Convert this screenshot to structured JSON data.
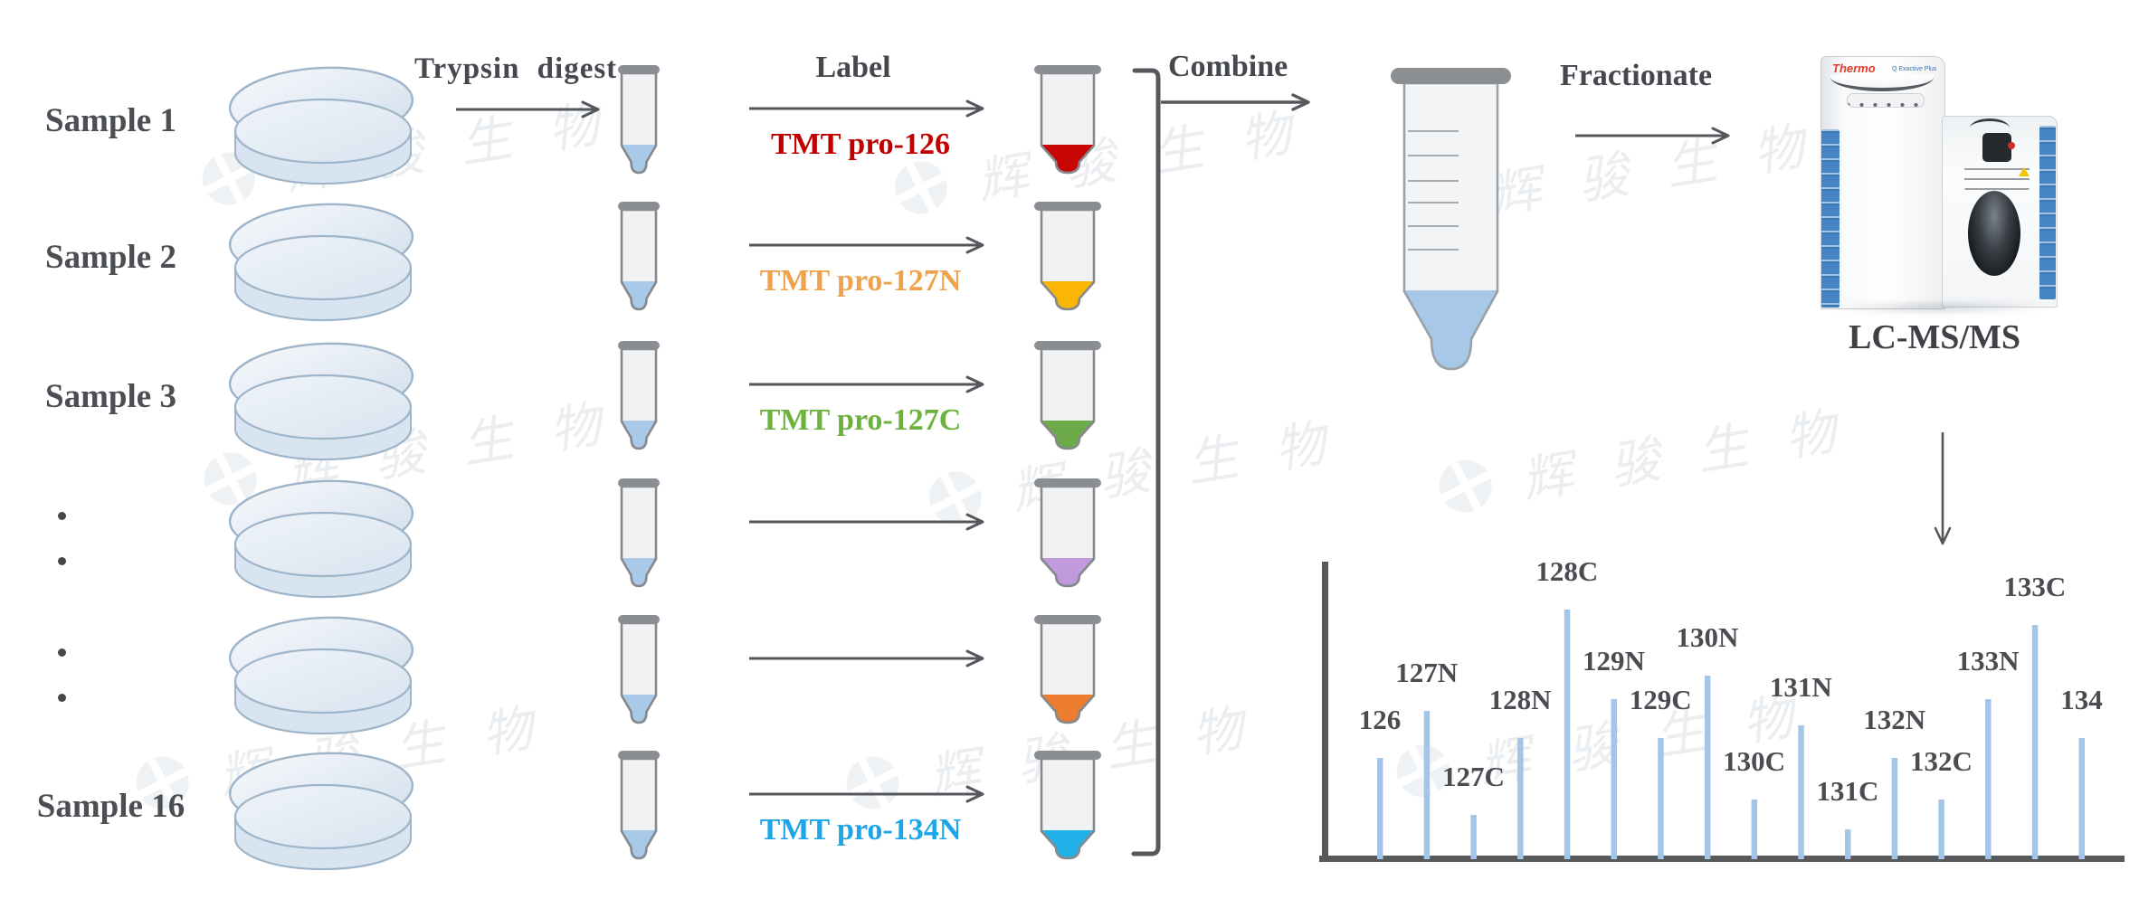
{
  "workflow": {
    "steps": {
      "digest": "Trypsin digest",
      "label": "Label",
      "combine": "Combine",
      "fractionate": "Fractionate"
    },
    "rows": [
      {
        "sample": "Sample 1",
        "dots": false,
        "tmt": "TMT pro-126",
        "tmt_color": "#c00000",
        "liquid": "#c90505"
      },
      {
        "sample": "Sample 2",
        "dots": false,
        "tmt": "TMT pro-127N",
        "tmt_color": "#f0a24b",
        "liquid": "#fbb605"
      },
      {
        "sample": "Sample 3",
        "dots": false,
        "tmt": "TMT pro-127C",
        "tmt_color": "#6cb33d",
        "liquid": "#6daa49"
      },
      {
        "sample": "",
        "dots": true,
        "tmt": "",
        "tmt_color": "",
        "liquid": "#c199dd"
      },
      {
        "sample": "",
        "dots": true,
        "tmt": "",
        "tmt_color": "",
        "liquid": "#ec7d2f"
      },
      {
        "sample": "Sample 16",
        "dots": false,
        "tmt": "TMT pro-134N",
        "tmt_color": "#1ca6ea",
        "liquid": "#21b0e8"
      }
    ],
    "instrument_brand": "Thermo",
    "instrument_model": "Q Exactive Plus",
    "instrument_label": "LC-MS/MS"
  },
  "palette": {
    "sample_liquid": "#a9c9e9",
    "combined_liquid": "#a8c8e8",
    "tube_body": "#f1f2f3",
    "tube_outline": "#85898d",
    "tube_cap": "#8a8d91",
    "arrow": "#54575c",
    "bracket": "#55585c",
    "dish_fill": "#e7eef6",
    "dish_stroke": "#9db4c9",
    "text": "#45484e",
    "thermo_red": "#e23b2e",
    "instrument_blue": "#4585c3",
    "watermark_gray": "#bfc9d2"
  },
  "watermark": {
    "text": "辉骏生物"
  },
  "chart_data": {
    "type": "bar",
    "title": "",
    "xlabel": "",
    "ylabel": "",
    "categories": [
      "126",
      "127N",
      "127C",
      "128N",
      "128C",
      "129N",
      "129C",
      "130N",
      "130C",
      "131N",
      "131C",
      "132N",
      "132C",
      "133N",
      "133C",
      "134"
    ],
    "values": [
      34,
      50,
      15,
      41,
      84,
      54,
      41,
      62,
      20,
      45,
      10,
      34,
      20,
      54,
      79,
      41
    ],
    "ylim": [
      0,
      100
    ],
    "grid": false,
    "legend": false,
    "bar_color": "#a3c6e8",
    "axis_color": "#58595b"
  }
}
